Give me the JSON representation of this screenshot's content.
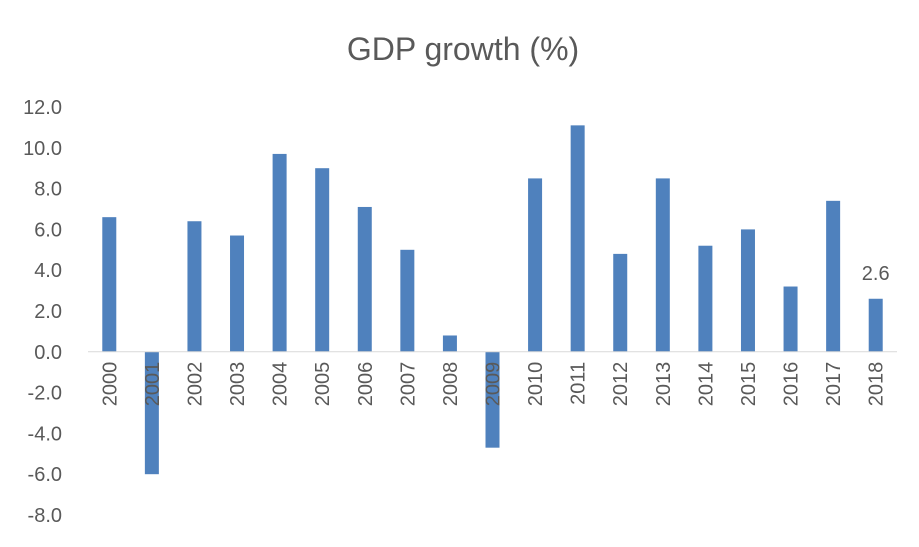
{
  "chart_data": {
    "type": "bar",
    "title": "GDP growth (%)",
    "xlabel": "",
    "ylabel": "",
    "ylim": [
      -8,
      12
    ],
    "yticks": [
      "12.0",
      "10.0",
      "8.0",
      "6.0",
      "4.0",
      "2.0",
      "0.0",
      "-2.0",
      "-4.0",
      "-6.0",
      "-8.0"
    ],
    "grid": false,
    "legend": "none",
    "bar_color": "#4F81BD",
    "categories": [
      "2000",
      "2001",
      "2002",
      "2003",
      "2004",
      "2005",
      "2006",
      "2007",
      "2008",
      "2009",
      "2010",
      "2011",
      "2012",
      "2013",
      "2014",
      "2015",
      "2016",
      "2017",
      "2018"
    ],
    "values": [
      6.6,
      -6.0,
      6.4,
      5.7,
      9.7,
      9.0,
      7.1,
      5.0,
      0.8,
      -4.7,
      8.5,
      11.1,
      4.8,
      8.5,
      5.2,
      6.0,
      3.2,
      7.4,
      2.6
    ],
    "data_labels": [
      {
        "category": "2018",
        "text": "2.6"
      }
    ]
  }
}
